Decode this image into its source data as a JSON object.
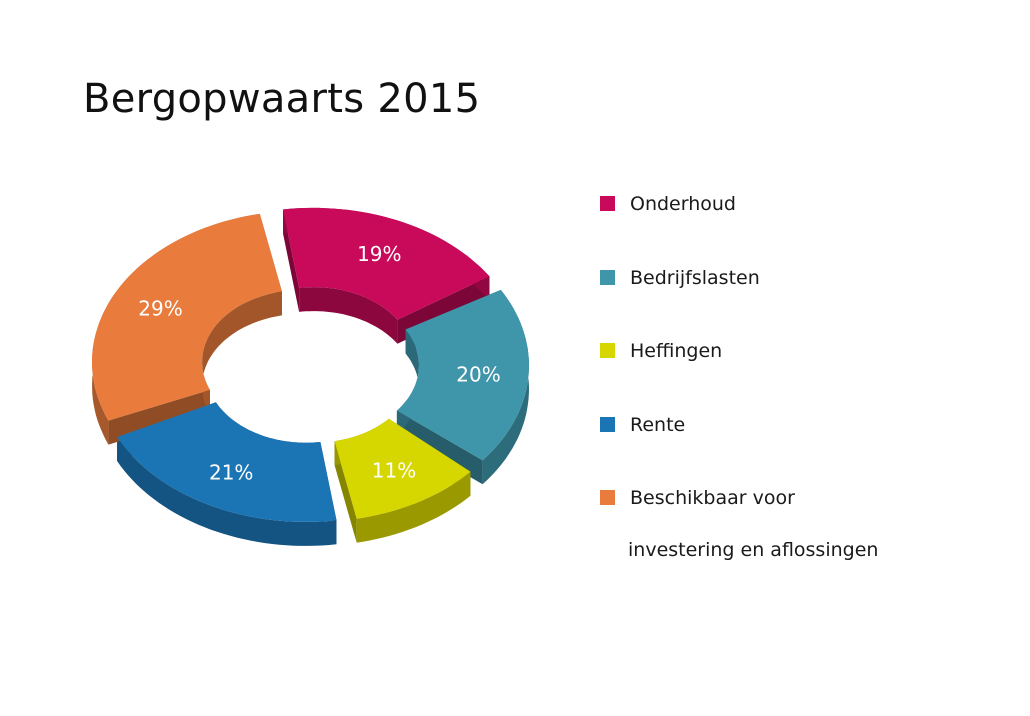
{
  "chart_data": {
    "type": "pie",
    "style": "3d-donut",
    "title": "Bergopwaarts 2015",
    "legend_position": "right",
    "slices": [
      {
        "label": "Onderhoud",
        "value": 19,
        "value_label": "19%",
        "color": "#c90a5a"
      },
      {
        "label": "Bedrijfslasten",
        "value": 20,
        "value_label": "20%",
        "color": "#3f96ab"
      },
      {
        "label": "Heffingen",
        "value": 11,
        "value_label": "11%",
        "color": "#d6d600"
      },
      {
        "label": "Rente",
        "value": 21,
        "value_label": "21%",
        "color": "#1b75b4"
      },
      {
        "label": "Beschikbaar voor",
        "label_line2": "investering en aflossingen",
        "value": 29,
        "value_label": "29%",
        "color": "#e97b3c"
      }
    ]
  }
}
